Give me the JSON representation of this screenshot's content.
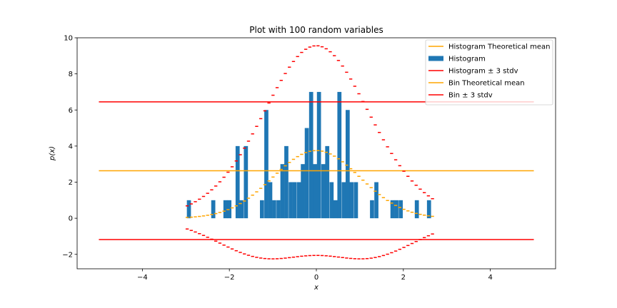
{
  "chart_data": {
    "type": "bar",
    "title": "Plot with 100 random variables",
    "xlabel": "x",
    "ylabel": "p(x)",
    "xlim": [
      -5.5,
      5.5
    ],
    "ylim": [
      -2.8,
      10.0
    ],
    "xticks": [
      -4,
      -2,
      0,
      2,
      4
    ],
    "xtick_labels": [
      "−4",
      "−2",
      "0",
      "2",
      "4"
    ],
    "yticks": [
      -2,
      0,
      2,
      4,
      6,
      8,
      10
    ],
    "ytick_labels": [
      "−2",
      "0",
      "2",
      "4",
      "6",
      "8",
      "10"
    ],
    "grid": false,
    "legend_position": "top-right",
    "legend": [
      {
        "label": "Histogram Theoretical mean",
        "kind": "line",
        "color": "#ffa500"
      },
      {
        "label": "Histogram",
        "kind": "patch",
        "color": "#1f77b4"
      },
      {
        "label": "Histogram ± 3 stdv",
        "kind": "line",
        "color": "#ff0000"
      },
      {
        "label": "Bin Theoretical mean",
        "kind": "line",
        "color": "#ffa500"
      },
      {
        "label": "Bin ± 3 stdv",
        "kind": "line",
        "color": "#ff0000"
      }
    ],
    "histogram": {
      "name": "Histogram",
      "color": "#1f77b4",
      "bin_width": 0.094,
      "bins": [
        {
          "x": -2.93,
          "h": 1
        },
        {
          "x": -2.37,
          "h": 1
        },
        {
          "x": -2.09,
          "h": 1
        },
        {
          "x": -2.0,
          "h": 1
        },
        {
          "x": -1.81,
          "h": 4
        },
        {
          "x": -1.72,
          "h": 1
        },
        {
          "x": -1.62,
          "h": 4
        },
        {
          "x": -1.25,
          "h": 1
        },
        {
          "x": -1.15,
          "h": 6
        },
        {
          "x": -1.06,
          "h": 2
        },
        {
          "x": -0.97,
          "h": 1
        },
        {
          "x": -0.87,
          "h": 1
        },
        {
          "x": -0.78,
          "h": 3
        },
        {
          "x": -0.69,
          "h": 4
        },
        {
          "x": -0.59,
          "h": 2
        },
        {
          "x": -0.5,
          "h": 2
        },
        {
          "x": -0.4,
          "h": 2
        },
        {
          "x": -0.31,
          "h": 3
        },
        {
          "x": -0.22,
          "h": 5
        },
        {
          "x": -0.12,
          "h": 7
        },
        {
          "x": -0.03,
          "h": 3
        },
        {
          "x": 0.06,
          "h": 7
        },
        {
          "x": 0.16,
          "h": 3
        },
        {
          "x": 0.25,
          "h": 4
        },
        {
          "x": 0.35,
          "h": 2
        },
        {
          "x": 0.44,
          "h": 1
        },
        {
          "x": 0.53,
          "h": 7
        },
        {
          "x": 0.63,
          "h": 2
        },
        {
          "x": 0.72,
          "h": 6
        },
        {
          "x": 0.81,
          "h": 2
        },
        {
          "x": 0.91,
          "h": 2
        },
        {
          "x": 1.28,
          "h": 1
        },
        {
          "x": 1.38,
          "h": 2
        },
        {
          "x": 1.75,
          "h": 1
        },
        {
          "x": 1.84,
          "h": 1
        },
        {
          "x": 1.94,
          "h": 1
        },
        {
          "x": 2.31,
          "h": 1
        },
        {
          "x": 2.59,
          "h": 1
        }
      ]
    },
    "histogram_mean": {
      "name": "Histogram Theoretical mean",
      "y": 2.63,
      "x": [
        -5,
        5
      ],
      "color": "#ffa500"
    },
    "histogram_stdv": {
      "name": "Histogram ± 3 stdv",
      "upper": 6.45,
      "lower": -1.18,
      "x": [
        -5,
        5
      ],
      "color": "#ff0000"
    },
    "bin_mean": {
      "name": "Bin Theoretical mean",
      "color": "#ffa500",
      "x_start": -2.97,
      "x_end": 2.71,
      "step": 0.094,
      "peak": 3.75,
      "sigma": 1.0
    },
    "bin_stdv": {
      "name": "Bin ± 3 stdv",
      "color": "#ff0000",
      "x_start": -2.97,
      "x_end": 2.71,
      "step": 0.094,
      "multiplier": 3
    }
  }
}
